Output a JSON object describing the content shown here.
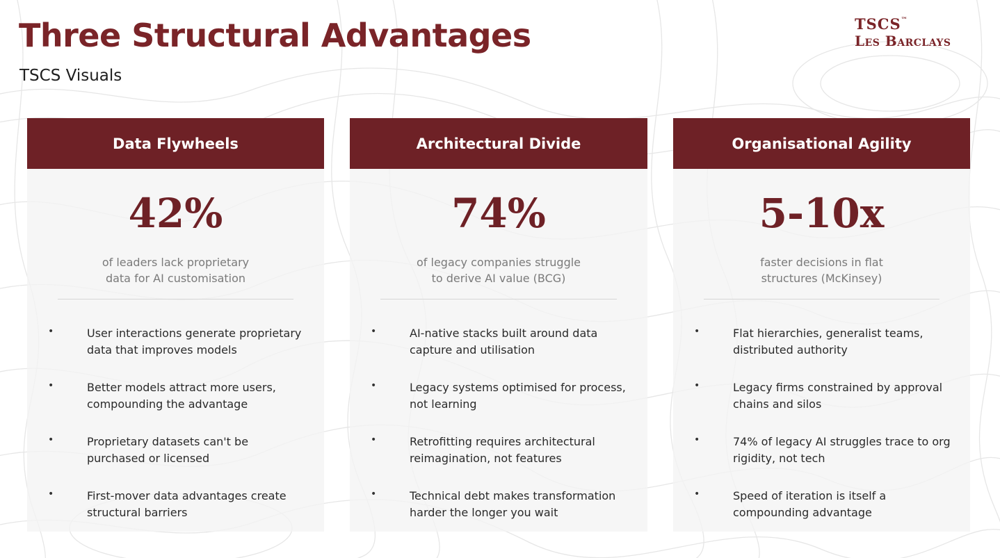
{
  "page": {
    "title": "Three Structural Advantages",
    "subtitle": "TSCS Visuals"
  },
  "logo": {
    "line1": "TSCS",
    "tm": "™",
    "line2": "Les Barclays"
  },
  "colors": {
    "accent": "#6e2126",
    "title": "#7a2428",
    "card_bg": "#f3f3f3",
    "muted_text": "#7a7a7a"
  },
  "cards": [
    {
      "header": "Data Flywheels",
      "stat": "42%",
      "stat_desc_line1": "of leaders lack proprietary",
      "stat_desc_line2": "data for AI customisation",
      "bullets": [
        {
          "line1": "User interactions generate proprietary",
          "line2": "data that improves models"
        },
        {
          "line1": "Better models attract more users,",
          "line2": "compounding the advantage"
        },
        {
          "line1": "Proprietary datasets can't be",
          "line2": "purchased or licensed"
        },
        {
          "line1": "First-mover data advantages create",
          "line2": "structural barriers"
        }
      ]
    },
    {
      "header": "Architectural Divide",
      "stat": "74%",
      "stat_desc_line1": "of legacy companies struggle",
      "stat_desc_line2": "to derive AI value (BCG)",
      "bullets": [
        {
          "line1": "AI-native stacks built around data",
          "line2": "capture and utilisation"
        },
        {
          "line1": "Legacy systems optimised for process,",
          "line2": "not learning"
        },
        {
          "line1": "Retrofitting requires architectural",
          "line2": "reimagination, not features"
        },
        {
          "line1": "Technical debt makes transformation",
          "line2": "harder the longer you wait"
        }
      ]
    },
    {
      "header": "Organisational Agility",
      "stat": "5-10x",
      "stat_desc_line1": "faster decisions in flat",
      "stat_desc_line2": "structures (McKinsey)",
      "bullets": [
        {
          "line1": "Flat hierarchies, generalist teams,",
          "line2": "distributed authority"
        },
        {
          "line1": "Legacy firms constrained by approval",
          "line2": "chains and silos"
        },
        {
          "line1": "74% of legacy AI struggles trace to org",
          "line2": "rigidity, not tech"
        },
        {
          "line1": "Speed of iteration is itself a",
          "line2": "compounding advantage"
        }
      ]
    }
  ]
}
